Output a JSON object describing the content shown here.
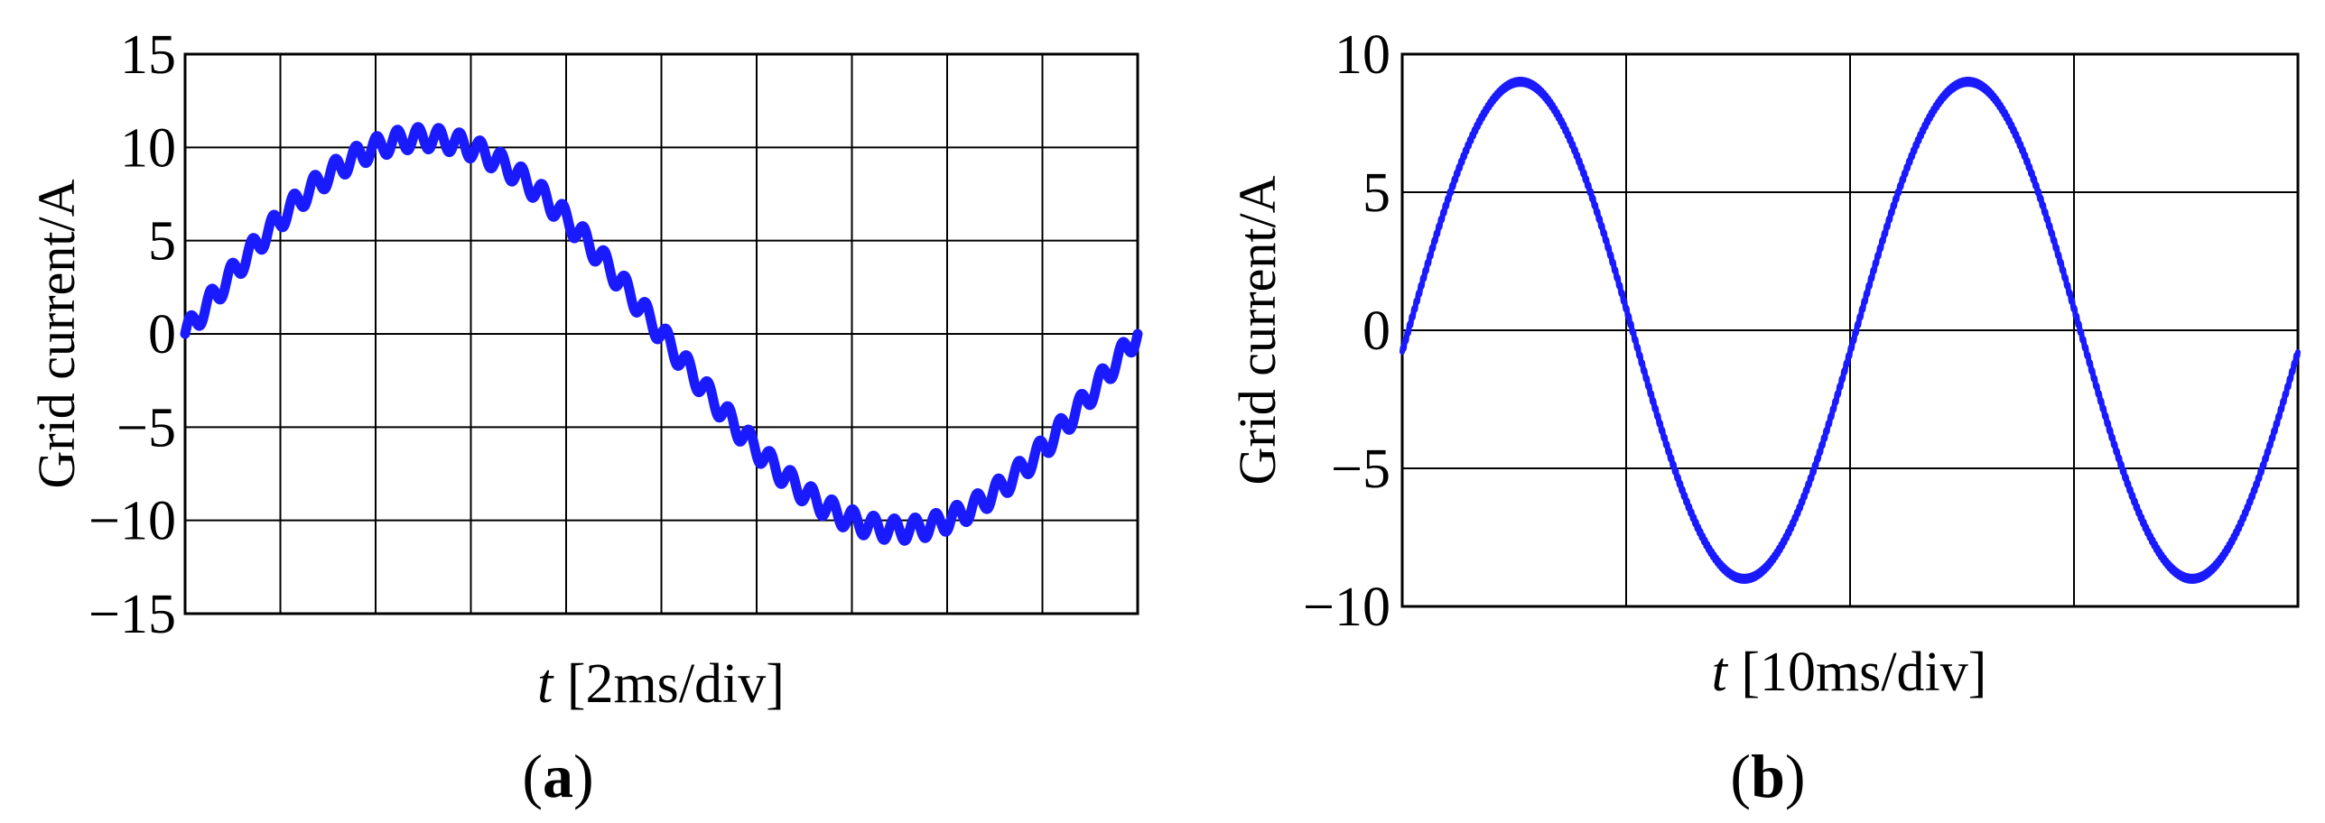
{
  "chart_data": [
    {
      "type": "line",
      "panel_label": "a",
      "xlabel_var": "t",
      "xlabel_rest": " [2ms/div]",
      "ylabel": "Grid current/A",
      "ylim": [
        -15,
        15
      ],
      "yticks": [
        15,
        10,
        5,
        0,
        -5,
        -10,
        -15
      ],
      "ytick_labels": [
        "15",
        "10",
        "5",
        "0",
        "−5",
        "−10",
        "−15"
      ],
      "x_divisions": 10,
      "grid": true,
      "series": [
        {
          "color": "#1a1aff",
          "waveform": {
            "amplitude": 10.5,
            "cycles": 1.0,
            "phase_deg": 0,
            "ripple_amplitude": 0.6,
            "ripple_cycles": 46
          }
        }
      ]
    },
    {
      "type": "line",
      "panel_label": "b",
      "xlabel_var": "t",
      "xlabel_rest": " [10ms/div]",
      "ylabel": "Grid current/A",
      "ylim": [
        -10,
        10
      ],
      "yticks": [
        10,
        5,
        0,
        -5,
        -10
      ],
      "ytick_labels": [
        "10",
        "5",
        "0",
        "−5",
        "−10"
      ],
      "x_divisions": 4,
      "grid": true,
      "series": [
        {
          "color": "#1a1aff",
          "waveform": {
            "amplitude": 9.0,
            "cycles": 2.0,
            "phase_deg": -5,
            "ripple_amplitude": 0.1,
            "ripple_cycles": 400
          }
        }
      ]
    }
  ]
}
